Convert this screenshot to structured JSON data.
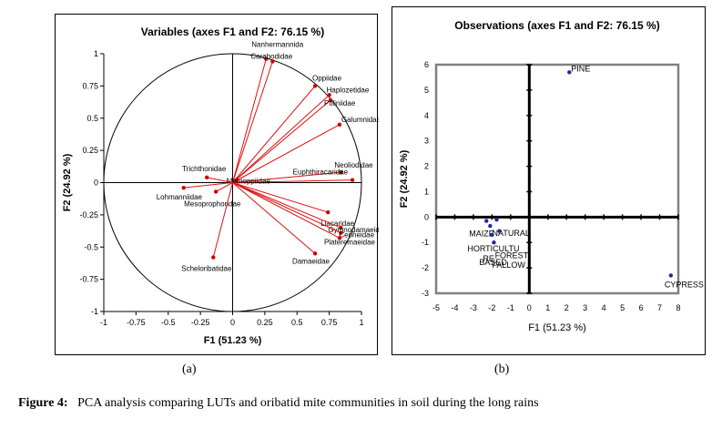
{
  "chart_data": [
    {
      "type": "scatter",
      "subtype": "correlation-circle",
      "title": "Variables (axes F1 and F2: 76.15 %)",
      "xlabel": "F1 (51.23 %)",
      "ylabel": "F2 (24.92 %)",
      "xlim": [
        -1,
        1
      ],
      "ylim": [
        -1,
        1
      ],
      "xticks": [
        "-1",
        "-0.75",
        "-0.5",
        "-0.25",
        "0",
        "0.25",
        "0.5",
        "0.75",
        "1"
      ],
      "yticks": [
        "1",
        "0.75",
        "0.5",
        "0.25",
        "0",
        "-0.25",
        "-0.5",
        "-0.75",
        "-1"
      ],
      "points": [
        {
          "label": "Nanhermannida",
          "x": 0.26,
          "y": 0.96
        },
        {
          "label": "Carabodidae",
          "x": 0.31,
          "y": 0.94
        },
        {
          "label": "Oppiidae",
          "x": 0.64,
          "y": 0.75
        },
        {
          "label": "Haplozetidae",
          "x": 0.75,
          "y": 0.68
        },
        {
          "label": "Ptiliniidae",
          "x": 0.76,
          "y": 0.64
        },
        {
          "label": "Galumnidae",
          "x": 0.83,
          "y": 0.45
        },
        {
          "label": "Neoliodidae",
          "x": 0.84,
          "y": 0.08
        },
        {
          "label": "Euphthiracaridae",
          "x": 0.93,
          "y": 0.02
        },
        {
          "label": "Trichthonidae",
          "x": -0.2,
          "y": 0.04
        },
        {
          "label": "Metrioppiidae",
          "x": 0.03,
          "y": 0.02
        },
        {
          "label": "Lohmanniidae",
          "x": -0.38,
          "y": -0.04
        },
        {
          "label": "Mesoprophoridae",
          "x": -0.13,
          "y": -0.07
        },
        {
          "label": "Liacaridae",
          "x": 0.74,
          "y": -0.23
        },
        {
          "label": "Gymnodamaeidae",
          "x": 0.84,
          "y": -0.35
        },
        {
          "label": "Cepheidae",
          "x": 0.84,
          "y": -0.39
        },
        {
          "label": "Plateremaeidae",
          "x": 0.83,
          "y": -0.43
        },
        {
          "label": "Damaeidae",
          "x": 0.64,
          "y": -0.55
        },
        {
          "label": "Scheloribatidae",
          "x": -0.15,
          "y": -0.58
        }
      ]
    },
    {
      "type": "scatter",
      "title": "Observations (axes F1 and F2: 76.15 %)",
      "xlabel": "F1 (51.23 %)",
      "ylabel": "F2 (24.92 %)",
      "xlim": [
        -5,
        8
      ],
      "ylim": [
        -3,
        6
      ],
      "xticks": [
        "-5",
        "-4",
        "-3",
        "-2",
        "-1",
        "0",
        "1",
        "2",
        "3",
        "4",
        "5",
        "6",
        "7",
        "8"
      ],
      "yticks": [
        "6",
        "5",
        "4",
        "3",
        "2",
        "1",
        "0",
        "-1",
        "-2",
        "-3"
      ],
      "points": [
        {
          "label": "PINE",
          "x": 2.15,
          "y": 5.7
        },
        {
          "label": "CYPRESS",
          "x": 7.6,
          "y": -2.3
        },
        {
          "label": "MAIZE",
          "x": -2.3,
          "y": -0.15
        },
        {
          "label": "NATURAL",
          "x": -1.75,
          "y": -0.1
        },
        {
          "label": "HORTICULTURE",
          "x": -2.1,
          "y": -0.35
        },
        {
          "label": "BASED",
          "x": -2.0,
          "y": -0.7
        },
        {
          "label": "FOREST",
          "x": -1.6,
          "y": -0.55
        },
        {
          "label": "FALLOW",
          "x": -1.9,
          "y": -1.0
        }
      ],
      "label_lines": {
        "MAIZE": "MAIZE",
        "NATURAL": "NATURAL",
        "HORTICULTURE": [
          "HORTICULTU",
          "RE"
        ],
        "BASED": "BASED",
        "FOREST": "FOREST",
        "FALLOW": "FALLOW"
      }
    }
  ],
  "subcaptions": {
    "a": "(a)",
    "b": "(b)"
  },
  "caption": {
    "label": "Figure 4:",
    "text": "PCA analysis comparing LUTs and oribatid mite communities in soil during the long rains"
  },
  "colors": {
    "vector": "#dd1111",
    "point_a": "#cc0000",
    "point_b": "#1c2a99",
    "frame_b": "#808080"
  }
}
